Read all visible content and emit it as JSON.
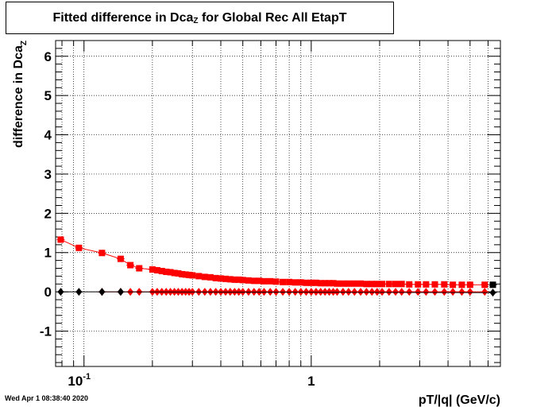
{
  "title": {
    "main": "Fitted difference in Dca",
    "sub": "Z",
    "tail": " for Global Rec All EtapT"
  },
  "timestamp": "Wed Apr  1 08:38:40 2020",
  "chart_data": {
    "type": "scatter",
    "x_scale": "log",
    "xlim": [
      0.075,
      6.8
    ],
    "ylim": [
      -1.9,
      6.4
    ],
    "grid": true,
    "xlabel": "pT/|q| (GeV/c)",
    "ylabel": "difference in Dca",
    "ylabel_sub": "Z",
    "y_ticks": [
      -1,
      0,
      1,
      2,
      3,
      4,
      5,
      6
    ],
    "y_tick_labels": [
      "-1",
      "0",
      "1",
      "2",
      "3",
      "4",
      "5",
      "6"
    ],
    "x_tick_labels": [
      {
        "value": 0.1,
        "base": "10",
        "exp": "-1"
      },
      {
        "value": 1,
        "base": "1",
        "exp": ""
      }
    ],
    "series": [
      {
        "marker": "square",
        "color": "#ff0000",
        "x": [
          0.079,
          0.095,
          0.12,
          0.145,
          0.16,
          0.175,
          0.2,
          0.21,
          0.22,
          0.23,
          0.24,
          0.25,
          0.26,
          0.27,
          0.28,
          0.29,
          0.3,
          0.32,
          0.34,
          0.36,
          0.38,
          0.4,
          0.42,
          0.44,
          0.46,
          0.48,
          0.5,
          0.53,
          0.56,
          0.59,
          0.62,
          0.66,
          0.7,
          0.75,
          0.8,
          0.85,
          0.9,
          0.95,
          1.0,
          1.05,
          1.1,
          1.15,
          1.2,
          1.25,
          1.3,
          1.38,
          1.46,
          1.55,
          1.65,
          1.75,
          1.85,
          1.95,
          2.05,
          2.2,
          2.35,
          2.5,
          2.7,
          2.95,
          3.2,
          3.5,
          3.85,
          4.2,
          4.6,
          5.0,
          5.8
        ],
        "y": [
          1.33,
          1.12,
          0.99,
          0.84,
          0.68,
          0.6,
          0.57,
          0.55,
          0.53,
          0.51,
          0.5,
          0.48,
          0.47,
          0.45,
          0.44,
          0.43,
          0.42,
          0.4,
          0.38,
          0.37,
          0.35,
          0.34,
          0.33,
          0.32,
          0.31,
          0.31,
          0.3,
          0.29,
          0.28,
          0.28,
          0.27,
          0.27,
          0.26,
          0.25,
          0.25,
          0.24,
          0.24,
          0.23,
          0.23,
          0.23,
          0.22,
          0.22,
          0.22,
          0.22,
          0.21,
          0.21,
          0.21,
          0.21,
          0.21,
          0.2,
          0.2,
          0.2,
          0.2,
          0.2,
          0.2,
          0.2,
          0.19,
          0.19,
          0.19,
          0.19,
          0.19,
          0.18,
          0.18,
          0.18,
          0.18
        ]
      },
      {
        "marker": "square",
        "color": "#000000",
        "x": [
          6.3
        ],
        "y": [
          0.18
        ]
      },
      {
        "marker": "diamond",
        "color": "#ff0000",
        "x": [
          0.12,
          0.145,
          0.16,
          0.175,
          0.2,
          0.21,
          0.22,
          0.23,
          0.24,
          0.25,
          0.26,
          0.27,
          0.28,
          0.29,
          0.3,
          0.32,
          0.34,
          0.36,
          0.38,
          0.4,
          0.42,
          0.44,
          0.46,
          0.48,
          0.5,
          0.53,
          0.56,
          0.59,
          0.62,
          0.66,
          0.7,
          0.75,
          0.8,
          0.85,
          0.9,
          0.95,
          1.0,
          1.05,
          1.1,
          1.15,
          1.2,
          1.25,
          1.3,
          1.38,
          1.46,
          1.55,
          1.65,
          1.75,
          1.85,
          1.95,
          2.05,
          2.2,
          2.35,
          2.5,
          2.7,
          2.95,
          3.2,
          3.5,
          3.85,
          4.2,
          4.6,
          5.0,
          5.8
        ],
        "y": [
          0.0,
          0.0,
          0.0,
          0.0,
          0.0,
          0.0,
          0.0,
          0.0,
          0.0,
          0.0,
          0.0,
          0.0,
          0.0,
          0.0,
          0.0,
          0.0,
          0.0,
          0.0,
          0.0,
          0.0,
          0.0,
          0.0,
          0.0,
          0.0,
          0.0,
          0.0,
          0.0,
          0.0,
          0.0,
          0.0,
          0.0,
          0.0,
          0.0,
          0.0,
          0.0,
          0.0,
          0.0,
          0.0,
          0.0,
          0.0,
          0.0,
          0.0,
          0.0,
          0.0,
          0.0,
          0.0,
          0.0,
          0.0,
          0.0,
          0.0,
          0.0,
          0.0,
          0.0,
          0.0,
          0.0,
          0.0,
          0.0,
          0.0,
          0.0,
          0.0,
          0.0,
          0.0,
          0.0
        ]
      },
      {
        "marker": "diamond",
        "color": "#000000",
        "x": [
          0.079,
          0.095,
          0.12,
          0.145,
          6.3
        ],
        "y": [
          0.0,
          0.0,
          0.0,
          0.0,
          -0.02
        ]
      }
    ]
  }
}
